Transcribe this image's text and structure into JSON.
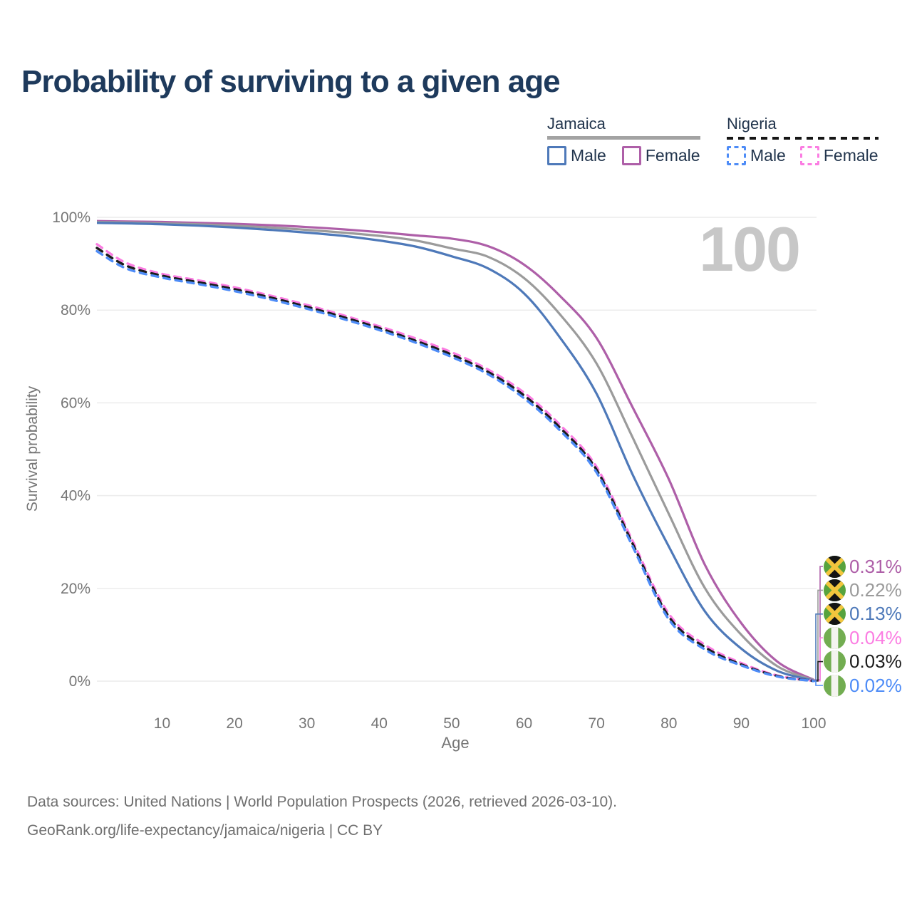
{
  "title": "Probability of surviving to a given age",
  "legend": {
    "jamaica": {
      "label": "Jamaica",
      "male_label": "Male",
      "female_label": "Female"
    },
    "nigeria": {
      "label": "Nigeria",
      "male_label": "Male",
      "female_label": "Female"
    }
  },
  "colors": {
    "title_text": "#1e3a5c",
    "legend_text": "#22354d",
    "axis_text": "#767676",
    "gridline": "#ececec",
    "age_indicator_text": "#c7c7c7",
    "footer_text": "#6f6f6f",
    "jamaica_underline": "#a3a3a3",
    "nigeria_underline": "#161616"
  },
  "chart_data": {
    "type": "line",
    "title": "Probability of surviving to a given age",
    "xlabel": "Age",
    "ylabel": "Survival probability",
    "xlim": [
      1,
      100
    ],
    "ylim": [
      0,
      100
    ],
    "grid": "horizontal",
    "legend_position": "top-right",
    "age_indicator": "100",
    "x_ticks": [
      10,
      20,
      30,
      40,
      50,
      60,
      70,
      80,
      90,
      100
    ],
    "y_ticks": [
      {
        "value": 0,
        "label": "0%"
      },
      {
        "value": 20,
        "label": "20%"
      },
      {
        "value": 40,
        "label": "40%"
      },
      {
        "value": 60,
        "label": "60%"
      },
      {
        "value": 80,
        "label": "80%"
      },
      {
        "value": 100,
        "label": "100%"
      }
    ],
    "ages": [
      1,
      5,
      10,
      15,
      20,
      25,
      30,
      35,
      40,
      45,
      50,
      55,
      60,
      65,
      70,
      75,
      80,
      85,
      90,
      95,
      100
    ],
    "series": [
      {
        "id": "jamaica-female",
        "country": "Jamaica",
        "sex": "female",
        "color": "#ae5fa8",
        "dash": false,
        "flag": "jamaica",
        "end_label": "0.31%",
        "values": [
          99.2,
          99.1,
          99.0,
          98.8,
          98.6,
          98.3,
          97.9,
          97.4,
          96.8,
          96.1,
          95.4,
          93.8,
          89.8,
          83.0,
          74.0,
          59.0,
          43.5,
          25.0,
          12.5,
          4.2,
          0.31
        ]
      },
      {
        "id": "jamaica-both",
        "country": "Jamaica",
        "sex": "both",
        "color": "#9b9b9b",
        "dash": false,
        "flag": "jamaica",
        "end_label": "0.22%",
        "values": [
          99.0,
          98.9,
          98.7,
          98.5,
          98.2,
          97.8,
          97.3,
          96.7,
          96.0,
          95.0,
          93.3,
          91.5,
          86.9,
          79.0,
          68.5,
          52.5,
          36.0,
          20.0,
          10.0,
          3.2,
          0.22
        ]
      },
      {
        "id": "jamaica-male",
        "country": "Jamaica",
        "sex": "male",
        "color": "#4e79b9",
        "dash": false,
        "flag": "jamaica",
        "end_label": "0.13%",
        "values": [
          98.8,
          98.7,
          98.5,
          98.2,
          97.8,
          97.3,
          96.7,
          96.0,
          95.0,
          93.7,
          91.6,
          89.0,
          83.6,
          74.0,
          62.0,
          44.5,
          29.0,
          15.0,
          7.0,
          2.2,
          0.13
        ]
      },
      {
        "id": "nigeria-female",
        "country": "Nigeria",
        "sex": "female",
        "color": "#fb7de2",
        "dash": true,
        "flag": "nigeria",
        "end_label": "0.04%",
        "values": [
          94.2,
          90.2,
          87.8,
          86.4,
          84.9,
          83.1,
          81.1,
          78.9,
          76.5,
          73.9,
          70.9,
          67.2,
          62.2,
          55.2,
          46.2,
          30.2,
          14.5,
          7.8,
          3.9,
          1.2,
          0.04
        ]
      },
      {
        "id": "nigeria-both",
        "country": "Nigeria",
        "sex": "both",
        "color": "#1c1c1c",
        "dash": true,
        "flag": "nigeria",
        "end_label": "0.03%",
        "values": [
          93.4,
          89.6,
          87.4,
          86.0,
          84.5,
          82.7,
          80.7,
          78.5,
          76.1,
          73.4,
          70.4,
          66.7,
          61.6,
          54.6,
          45.6,
          29.6,
          13.9,
          7.3,
          3.6,
          1.1,
          0.03
        ]
      },
      {
        "id": "nigeria-male",
        "country": "Nigeria",
        "sex": "male",
        "color": "#4e8cf7",
        "dash": true,
        "flag": "nigeria",
        "end_label": "0.02%",
        "values": [
          92.7,
          89.0,
          87.0,
          85.6,
          84.1,
          82.3,
          80.3,
          78.1,
          75.7,
          73.0,
          69.9,
          66.2,
          61.0,
          54.0,
          45.0,
          29.0,
          13.3,
          6.8,
          3.4,
          1.0,
          0.02
        ]
      }
    ]
  },
  "footer": {
    "line1": "Data sources: United Nations | World Population Prospects (2026, retrieved 2026-03-10).",
    "line2": "GeoRank.org/life-expectancy/jamaica/nigeria | CC BY"
  }
}
